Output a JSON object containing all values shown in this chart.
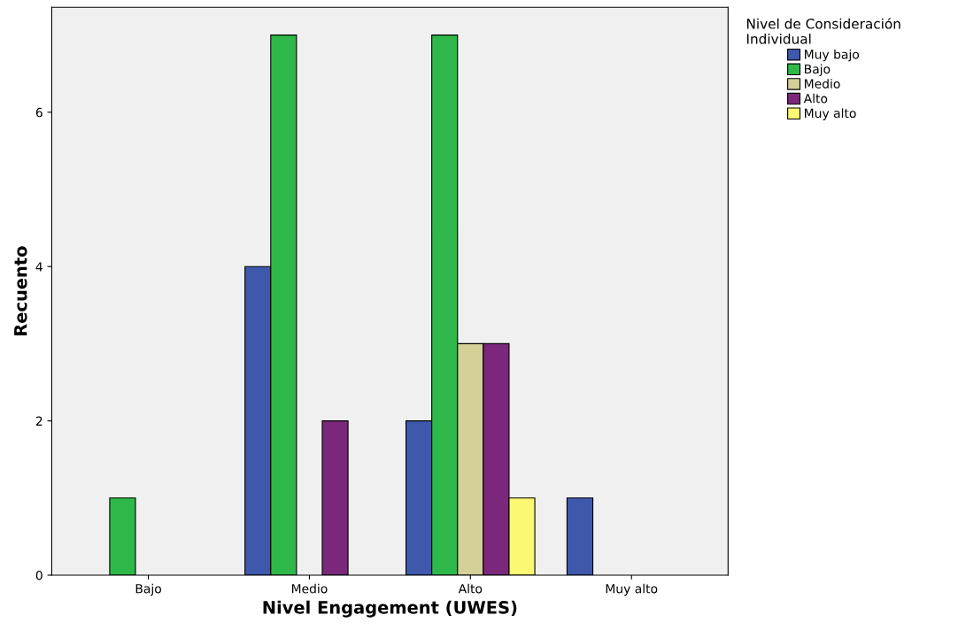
{
  "chart_data": {
    "type": "bar",
    "xlabel": "Nivel Engagement (UWES)",
    "ylabel": "Recuento",
    "legend_title": "Nivel de Consideración\nIndividual",
    "categories": [
      "Bajo",
      "Medio",
      "Alto",
      "Muy alto"
    ],
    "series": [
      {
        "name": "Muy bajo",
        "color": "#3e58ac",
        "values": [
          0,
          4,
          2,
          1
        ]
      },
      {
        "name": "Bajo",
        "color": "#2fb84a",
        "values": [
          1,
          7,
          7,
          0
        ]
      },
      {
        "name": "Medio",
        "color": "#d5cf98",
        "values": [
          0,
          0,
          3,
          0
        ]
      },
      {
        "name": "Alto",
        "color": "#7b287c",
        "values": [
          0,
          2,
          3,
          0
        ]
      },
      {
        "name": "Muy alto",
        "color": "#fbf873",
        "values": [
          0,
          0,
          1,
          0
        ]
      }
    ],
    "ylim": [
      0,
      7.36
    ],
    "yticks": [
      0,
      2,
      4,
      6
    ],
    "grid": false,
    "legend": "right"
  }
}
